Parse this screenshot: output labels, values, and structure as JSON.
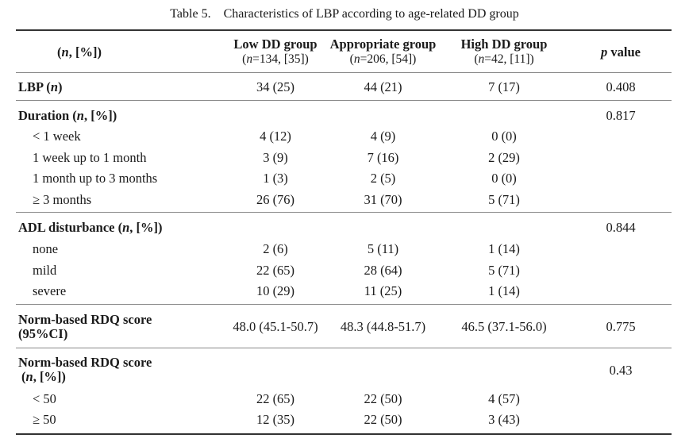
{
  "table": {
    "caption": "Table 5.    Characteristics of LBP according to age-related DD group",
    "header": {
      "col0": "(n, [%])",
      "low_title": "Low DD group",
      "low_sub": "(n=134, [35])",
      "app_title": "Appropriate group",
      "app_sub": "(n=206, [54])",
      "high_title": "High DD group",
      "high_sub": "(n=42, [11])",
      "p_title": "p value"
    },
    "lbp": {
      "label": "LBP (n)",
      "low": "34 (25)",
      "app": "44 (21)",
      "high": "7 (17)",
      "p": "0.408"
    },
    "duration": {
      "label": "Duration (n, [%])",
      "p": "0.817",
      "rows": [
        {
          "label": "< 1 week",
          "low": "4 (12)",
          "app": "4 (9)",
          "high": "0 (0)"
        },
        {
          "label": "1 week up to 1 month",
          "low": "3 (9)",
          "app": "7 (16)",
          "high": "2 (29)"
        },
        {
          "label": "1 month up to 3 months",
          "low": "1 (3)",
          "app": "2 (5)",
          "high": "0 (0)"
        },
        {
          "label": "≥ 3 months",
          "low": "26 (76)",
          "app": "31 (70)",
          "high": "5 (71)"
        }
      ]
    },
    "adl": {
      "label": "ADL disturbance (n, [%])",
      "p": "0.844",
      "rows": [
        {
          "label": "none",
          "low": "2 (6)",
          "app": "5 (11)",
          "high": "1 (14)"
        },
        {
          "label": "mild",
          "low": "22 (65)",
          "app": "28 (64)",
          "high": "5 (71)"
        },
        {
          "label": "severe",
          "low": "10 (29)",
          "app": "11 (25)",
          "high": "1 (14)"
        }
      ]
    },
    "rdq_ci": {
      "label1": "Norm-based RDQ score",
      "label2": "(95%CI)",
      "low": "48.0 (45.1-50.7)",
      "app": "48.3 (44.8-51.7)",
      "high": "46.5 (37.1-56.0)",
      "p": "0.775"
    },
    "rdq_n": {
      "label1": "Norm-based RDQ score",
      "label2": "(n, [%])",
      "p": "0.43",
      "rows": [
        {
          "label": "< 50",
          "low": "22 (65)",
          "app": "22 (50)",
          "high": "4 (57)"
        },
        {
          "label": "≥ 50",
          "low": "12 (35)",
          "app": "22 (50)",
          "high": "3 (43)"
        }
      ]
    }
  }
}
